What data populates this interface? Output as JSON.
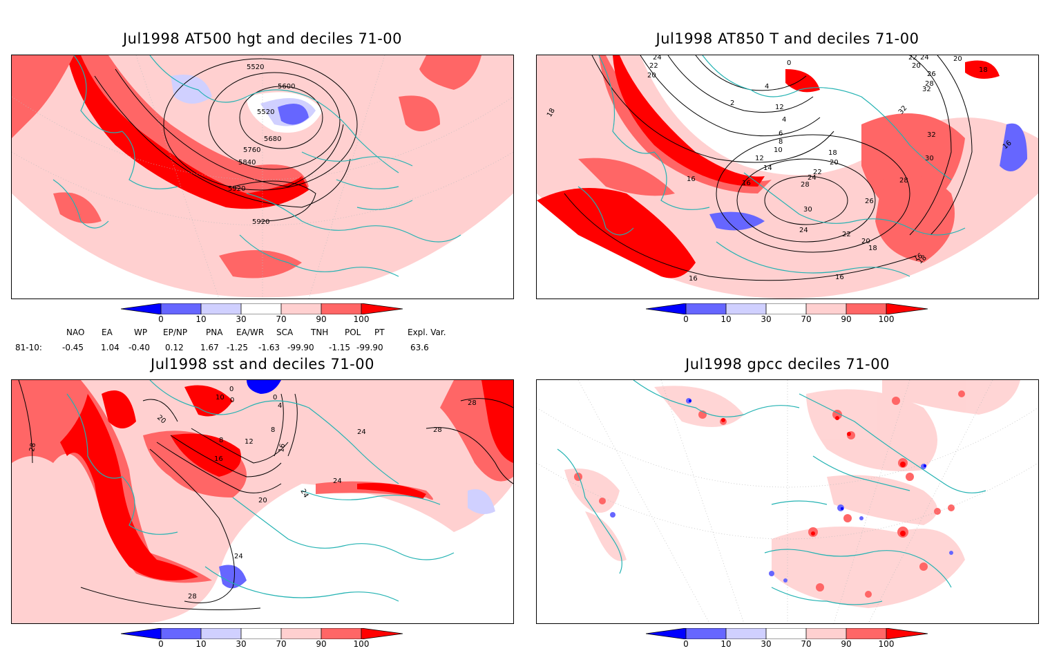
{
  "panels": [
    {
      "id": "at500",
      "title": "Jul1998 AT500 hgt and deciles 71-00",
      "contour_labels": [
        "5520",
        "5600",
        "5520",
        "5680",
        "5760",
        "5840",
        "5920",
        "5920"
      ]
    },
    {
      "id": "at850",
      "title": "Jul1998 AT850 T and deciles 71-00",
      "contour_labels": [
        "24",
        "22",
        "20",
        "18",
        "0",
        "4",
        "2",
        "12",
        "4",
        "6",
        "8",
        "10",
        "12",
        "14",
        "16",
        "16",
        "16",
        "18",
        "20",
        "22",
        "24",
        "28",
        "30",
        "26",
        "24",
        "22",
        "20",
        "18",
        "16",
        "16",
        "28",
        "30",
        "32",
        "32",
        "22",
        "24",
        "20",
        "26",
        "28",
        "32",
        "18",
        "20",
        "16",
        "18"
      ]
    },
    {
      "id": "sst",
      "title": "Jul1998 sst and deciles 71-00",
      "contour_labels": [
        "28",
        "20",
        "10",
        "0",
        "0",
        "8",
        "12",
        "16",
        "20",
        "24",
        "28",
        "24",
        "24",
        "24",
        "28",
        "28",
        "16",
        "8",
        "4",
        "0"
      ]
    },
    {
      "id": "gpcc",
      "title": "Jul1998 gpcc deciles 71-00",
      "contour_labels": []
    }
  ],
  "colorbar": {
    "ticks": [
      "0",
      "10",
      "30",
      "70",
      "90",
      "100"
    ],
    "colors": [
      "#0000ff",
      "#6666ff",
      "#d0d0ff",
      "#ffffff",
      "#ffd0d0",
      "#ff6666",
      "#ff0000"
    ]
  },
  "teleconnections": {
    "row_label": "81-10:",
    "headers": [
      "NAO",
      "EA",
      "WP",
      "EP/NP",
      "PNA",
      "EA/WR",
      "SCA",
      "TNH",
      "POL",
      "PT",
      "Expl. Var."
    ],
    "values": [
      "-0.45",
      "1.04",
      "-0.40",
      "0.12",
      "1.67",
      "-1.25",
      "-1.63",
      "-99.90",
      "-1.15",
      "-99.90",
      "63.6"
    ]
  },
  "colors": {
    "coast": "#22b2b2",
    "contour": "#000000",
    "red_strong": "#ff0000",
    "red_mid": "#ff6666",
    "red_light": "#ffd0d0",
    "blue_mid": "#6666ff",
    "blue_light": "#d0d0ff"
  }
}
